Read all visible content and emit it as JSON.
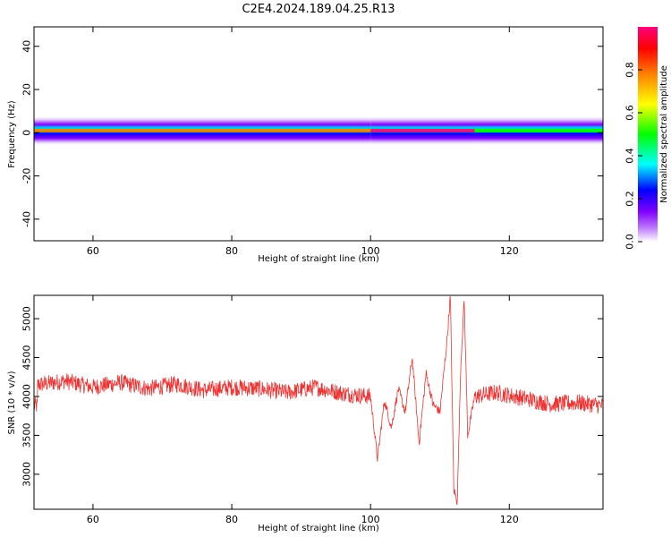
{
  "figure": {
    "title": "C2E4.2024.189.04.25.R13"
  },
  "chart_data": [
    {
      "type": "heatmap",
      "title": "C2E4.2024.189.04.25.R13",
      "xlabel": "Height of straight line (km)",
      "ylabel": "Frequency (Hz)",
      "xlim": [
        51.5,
        133.5
      ],
      "ylim": [
        -50,
        49
      ],
      "xticks": [
        60,
        80,
        100,
        120
      ],
      "yticks": [
        -40,
        -20,
        0,
        20,
        40
      ],
      "grid": false,
      "colorbar": {
        "label": "Normalized spectral amplitude",
        "range": [
          0,
          1
        ],
        "ticks": [
          0.0,
          0.2,
          0.4,
          0.6,
          0.8
        ],
        "colormap": [
          "#ffffff",
          "#c080ff",
          "#8000ff",
          "#0000ff",
          "#00ffff",
          "#00ff00",
          "#ffff00",
          "#ff8000",
          "#ff0000",
          "#ff0080"
        ]
      },
      "band": {
        "center_hz": 1,
        "halfwidth_hz": 7,
        "segments": [
          {
            "x": [
              51.5,
              100
            ],
            "peak_amplitude": 0.75
          },
          {
            "x": [
              100,
              115
            ],
            "peak_amplitude": 0.95
          },
          {
            "x": [
              115,
              133.5
            ],
            "peak_amplitude": 0.55
          }
        ]
      }
    },
    {
      "type": "line",
      "xlabel": "Height of straight line (km)",
      "ylabel": "SNR (10 * v/v)",
      "xlim": [
        51.5,
        133.5
      ],
      "ylim": [
        2550,
        5300
      ],
      "xticks": [
        60,
        80,
        100,
        120
      ],
      "yticks": [
        3000,
        3500,
        4000,
        4500,
        5000
      ],
      "grid": false,
      "color": "#ee3333",
      "series": [
        {
          "x": [
            52,
            56,
            60,
            64,
            68,
            72,
            76,
            80,
            84,
            88,
            92,
            96,
            100,
            101,
            102,
            103,
            104,
            105,
            106,
            107,
            108,
            109,
            110,
            111,
            111.5,
            112,
            112.5,
            113,
            113.5,
            114,
            115,
            118,
            122,
            126,
            130,
            133.5
          ],
          "values": [
            4150,
            4200,
            4120,
            4180,
            4100,
            4160,
            4080,
            4120,
            4100,
            4050,
            4120,
            4040,
            4000,
            3200,
            3950,
            3600,
            4100,
            3800,
            4500,
            3400,
            4300,
            3900,
            3800,
            4700,
            5300,
            2800,
            2650,
            4400,
            5250,
            3500,
            4000,
            4050,
            3980,
            3900,
            3920,
            3880
          ]
        }
      ]
    }
  ]
}
